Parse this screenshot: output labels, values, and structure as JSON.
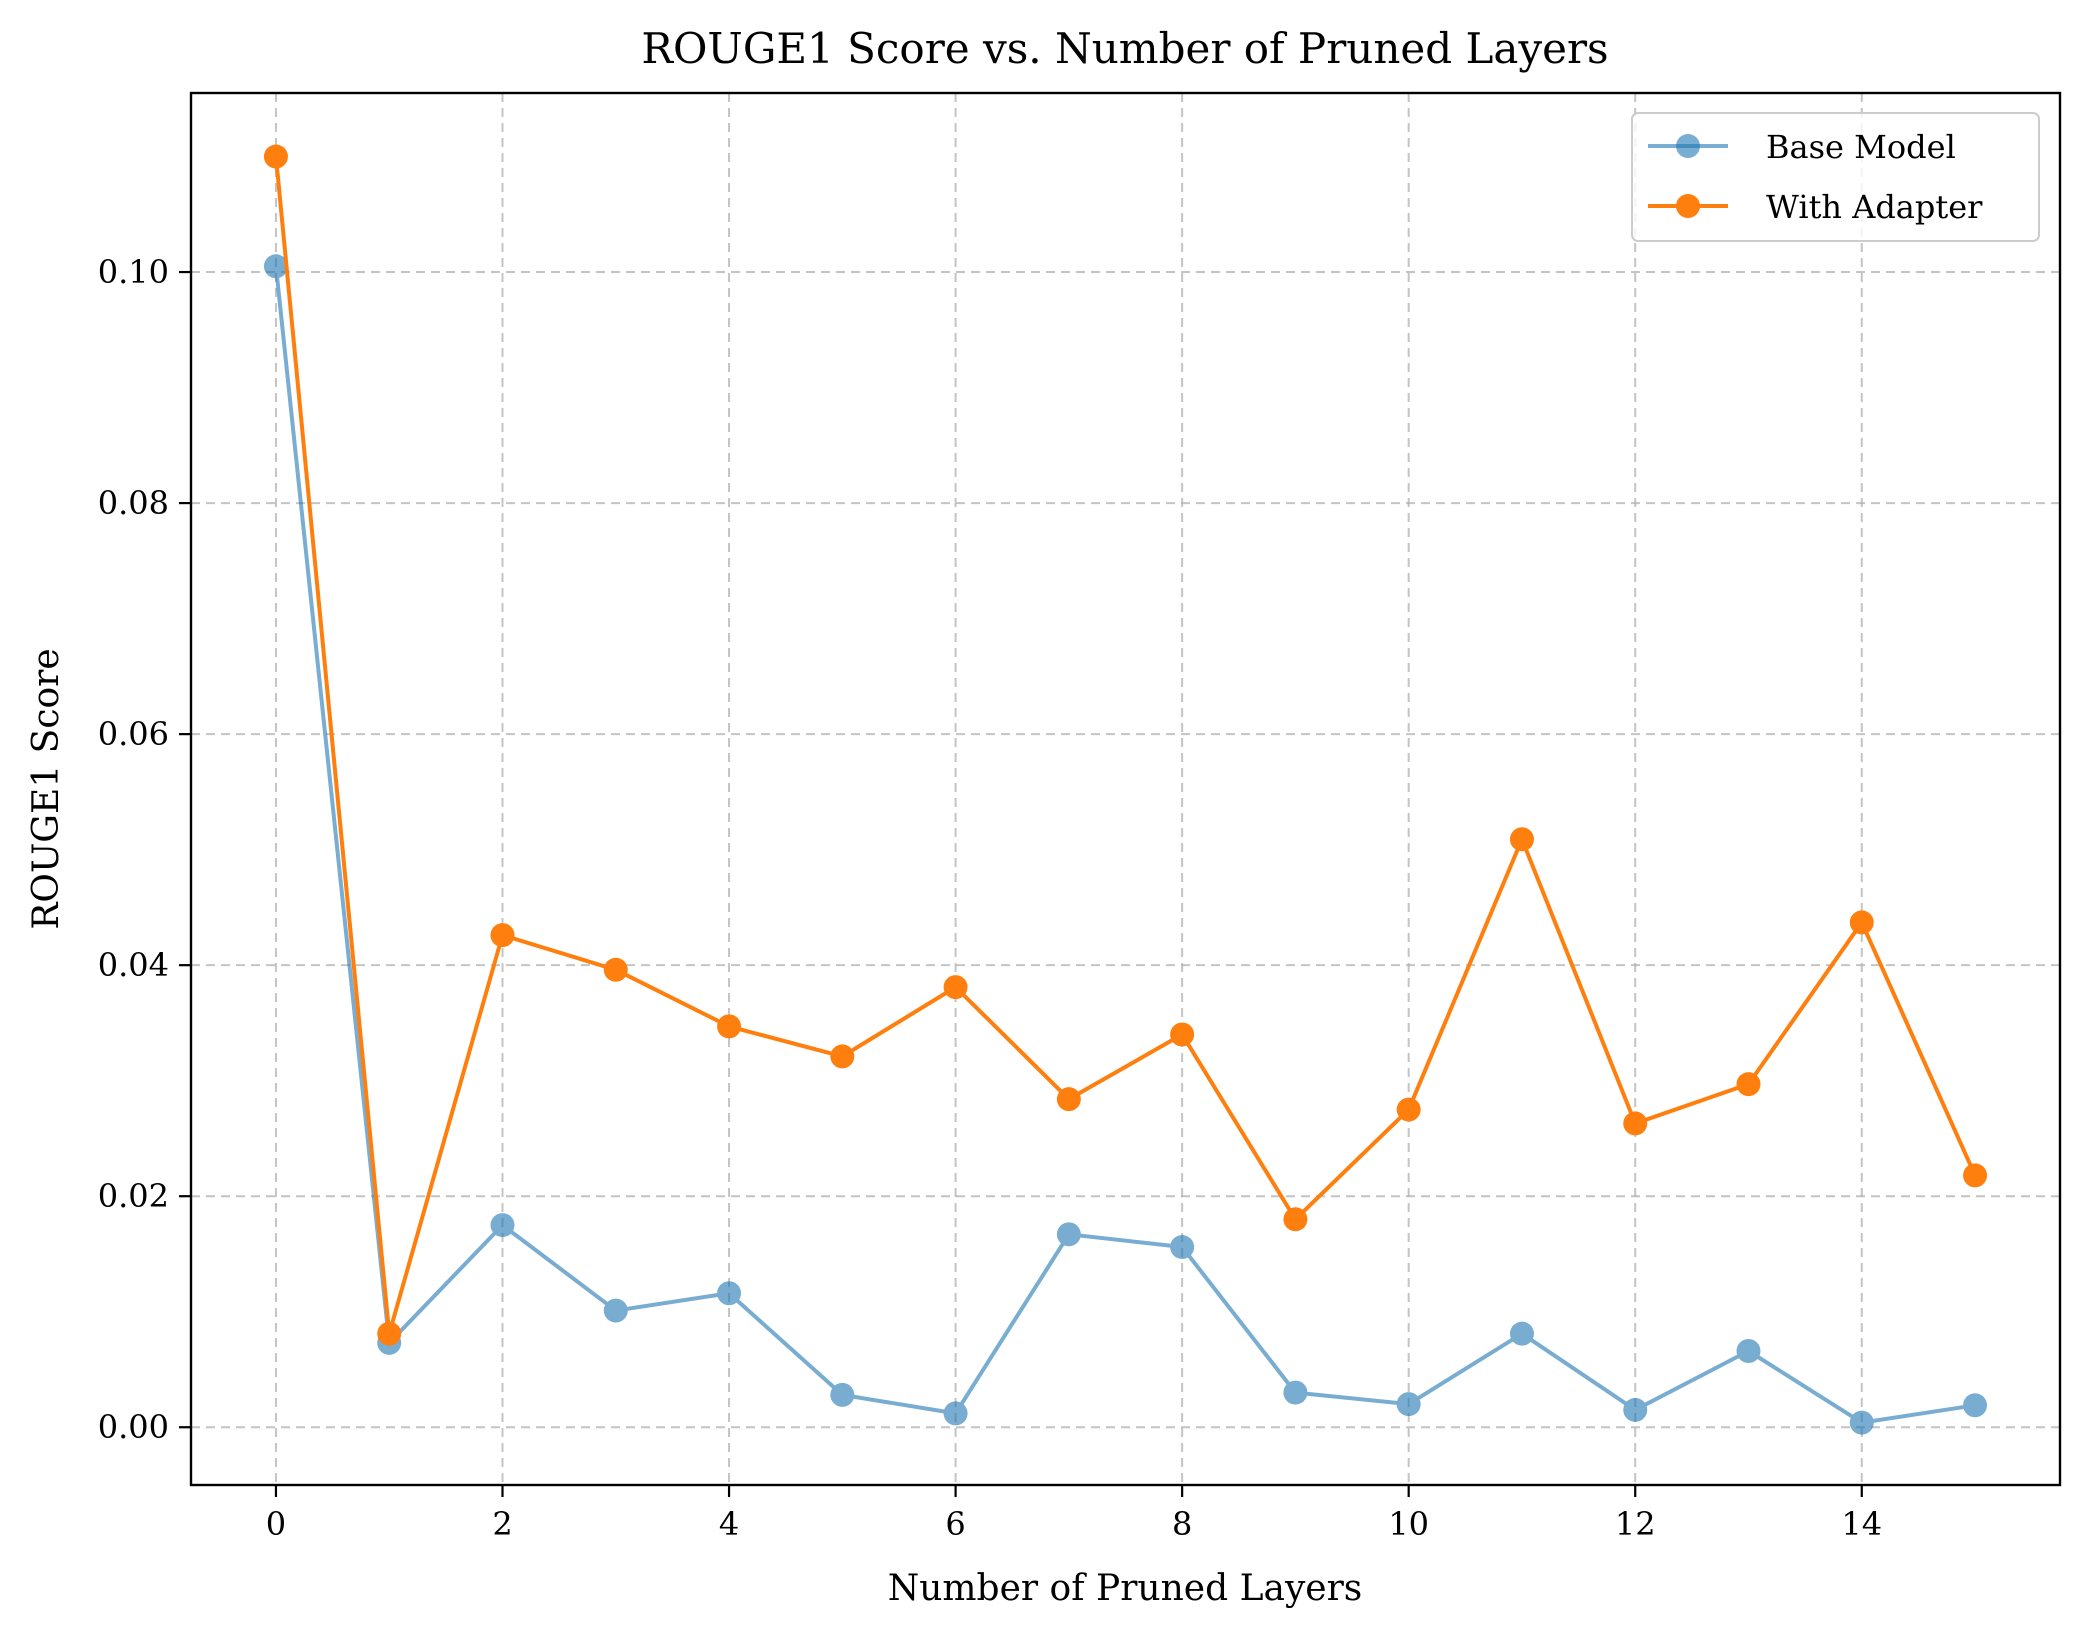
{
  "chart_data": {
    "type": "line",
    "title": "ROUGE1 Score vs. Number of Pruned Layers",
    "xlabel": "Number of Pruned Layers",
    "ylabel": "ROUGE1 Score",
    "x": [
      0,
      1,
      2,
      3,
      4,
      5,
      6,
      7,
      8,
      9,
      10,
      11,
      12,
      13,
      14,
      15
    ],
    "xlim": [
      -0.75,
      15.75
    ],
    "ylim": [
      -0.005,
      0.1155
    ],
    "xticks": [
      0,
      2,
      4,
      6,
      8,
      10,
      12,
      14
    ],
    "yticks": [
      0.0,
      0.02,
      0.04,
      0.06,
      0.08,
      0.1
    ],
    "xtick_labels": [
      "0",
      "2",
      "4",
      "6",
      "8",
      "10",
      "12",
      "14"
    ],
    "ytick_labels": [
      "0.00",
      "0.02",
      "0.04",
      "0.06",
      "0.08",
      "0.10"
    ],
    "grid": true,
    "legend_position": "top-right",
    "series": [
      {
        "name": "Base Model",
        "color": "#1f77b4",
        "opacity": 0.6,
        "marker": "circle",
        "values": [
          0.1005,
          0.0073,
          0.0175,
          0.0101,
          0.0116,
          0.0028,
          0.0012,
          0.0167,
          0.0156,
          0.003,
          0.002,
          0.0081,
          0.0015,
          0.0066,
          0.0004,
          0.0019
        ]
      },
      {
        "name": "With Adapter",
        "color": "#ff7f0e",
        "opacity": 1.0,
        "marker": "circle",
        "values": [
          0.11,
          0.0081,
          0.0426,
          0.0396,
          0.0347,
          0.0321,
          0.0381,
          0.0284,
          0.034,
          0.018,
          0.0275,
          0.0509,
          0.0263,
          0.0297,
          0.0437,
          0.0218
        ]
      }
    ]
  }
}
